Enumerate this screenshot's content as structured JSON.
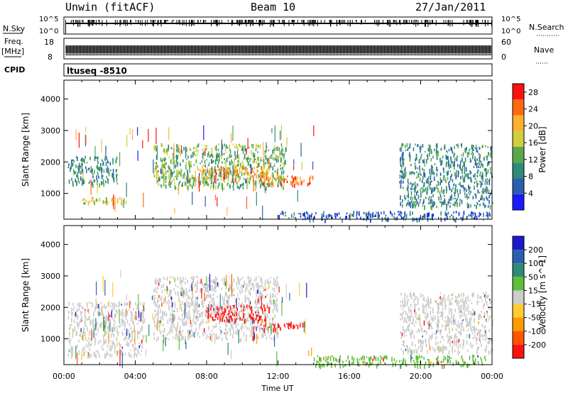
{
  "header": {
    "station": "Unwin (fitACF)",
    "beam": "Beam 10",
    "date": "27/Jan/2011"
  },
  "strips": {
    "nsky_label": "N.Sky",
    "nsky_ticks": [
      "10^5",
      "10^0"
    ],
    "nsearch_label": "N.Search",
    "freq_label": "Freq.",
    "freq_unit": "[MHz]",
    "freq_ticks": [
      "18",
      "8"
    ],
    "nave_ticks": [
      "60",
      "0"
    ],
    "nave_label": "Nave",
    "cpid_label": "CPID",
    "cpid_value": "ltuseq -8510"
  },
  "chart_data": [
    {
      "type": "heatmap",
      "panel": "power",
      "ylabel": "Slant Range [km]",
      "xlabel": "Time UT",
      "x_ticks": [
        "00:00",
        "04:00",
        "08:00",
        "12:00",
        "16:00",
        "20:00",
        "00:00"
      ],
      "x_range_hours": [
        0,
        24
      ],
      "y_ticks": [
        1000,
        2000,
        3000,
        4000
      ],
      "ylim": [
        180,
        4600
      ],
      "colorbar": {
        "label": "Power [dB]",
        "ticks": [
          4,
          8,
          12,
          16,
          20,
          24,
          28
        ],
        "range": [
          0,
          30
        ],
        "colors": [
          "#1a1aff",
          "#2a5fb0",
          "#2f8a7a",
          "#5aa84a",
          "#cfcf40",
          "#ffb030",
          "#ff6a10",
          "#ff1010"
        ]
      },
      "echo_regions": [
        {
          "t": [
            0.2,
            3.0
          ],
          "range_km": [
            1300,
            2200
          ],
          "power_db": 6
        },
        {
          "t": [
            1.0,
            3.5
          ],
          "range_km": [
            700,
            900
          ],
          "power_db": 14
        },
        {
          "t": [
            5.0,
            12.5
          ],
          "range_km": [
            1200,
            2600
          ],
          "power_db": 10
        },
        {
          "t": [
            7.5,
            11.5
          ],
          "range_km": [
            1500,
            1900
          ],
          "power_db": 20
        },
        {
          "t": [
            11.0,
            14.0
          ],
          "range_km": [
            1300,
            1600
          ],
          "power_db": 22
        },
        {
          "t": [
            18.8,
            24.0
          ],
          "range_km": [
            600,
            2600
          ],
          "power_db": 7
        },
        {
          "t": [
            12.0,
            24.0
          ],
          "range_km": [
            180,
            450
          ],
          "power_db": 4
        }
      ]
    },
    {
      "type": "heatmap",
      "panel": "velocity",
      "ylabel": "Slant Range [km]",
      "xlabel": "Time UT",
      "x_ticks": [
        "00:00",
        "04:00",
        "08:00",
        "12:00",
        "16:00",
        "20:00",
        "00:00"
      ],
      "x_range_hours": [
        0,
        24
      ],
      "y_ticks": [
        1000,
        2000,
        3000,
        4000
      ],
      "ylim": [
        180,
        4600
      ],
      "colorbar": {
        "label": "Velocity [m s^-1]",
        "ticks": [
          200,
          100,
          50,
          15,
          -15,
          -50,
          -100,
          -200
        ],
        "colors": [
          "#1a1acc",
          "#2a5fb0",
          "#2f8a7a",
          "#5fbf3a",
          "#cccccc",
          "#ffcc33",
          "#ff9900",
          "#ff5500",
          "#ff1010"
        ]
      },
      "echo_regions": [
        {
          "t": [
            0.2,
            4.5
          ],
          "range_km": [
            500,
            2200
          ],
          "velocity": 0
        },
        {
          "t": [
            5.0,
            12.0
          ],
          "range_km": [
            1000,
            3000
          ],
          "velocity": 0
        },
        {
          "t": [
            8.0,
            11.5
          ],
          "range_km": [
            1600,
            2100
          ],
          "velocity": -200
        },
        {
          "t": [
            11.0,
            13.5
          ],
          "range_km": [
            1300,
            1550
          ],
          "velocity": -220
        },
        {
          "t": [
            18.8,
            24.0
          ],
          "range_km": [
            600,
            2500
          ],
          "velocity": 0
        },
        {
          "t": [
            14.0,
            24.0
          ],
          "range_km": [
            180,
            500
          ],
          "velocity": 50
        }
      ]
    }
  ]
}
